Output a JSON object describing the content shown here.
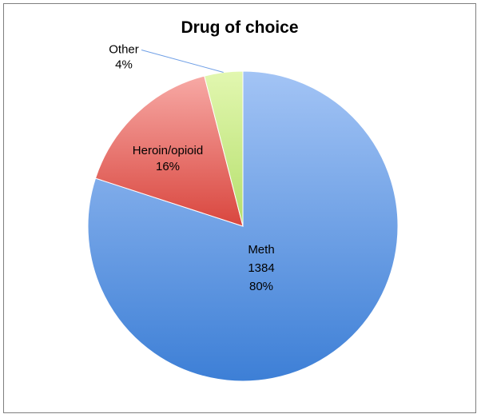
{
  "chart_data": {
    "type": "pie",
    "title": "Drug of choice",
    "slices": [
      {
        "label": "Meth",
        "value_label": "1384",
        "percent_label": "80%",
        "percent": 80,
        "color": "#6f9fe6",
        "color_light": "#a3c4f5",
        "color_dark": "#3d7fd6"
      },
      {
        "label": "Heroin/opioid",
        "value_label": "",
        "percent_label": "16%",
        "percent": 16,
        "color": "#e9736c",
        "color_light": "#f7a9a5",
        "color_dark": "#d9463e"
      },
      {
        "label": "Other",
        "value_label": "",
        "percent_label": "4%",
        "percent": 4,
        "color": "#c9ea8a",
        "color_light": "#e2f7b0",
        "color_dark": "#b5df6c"
      }
    ],
    "start_angle_deg": 0,
    "direction": "clockwise",
    "legend": "none"
  }
}
